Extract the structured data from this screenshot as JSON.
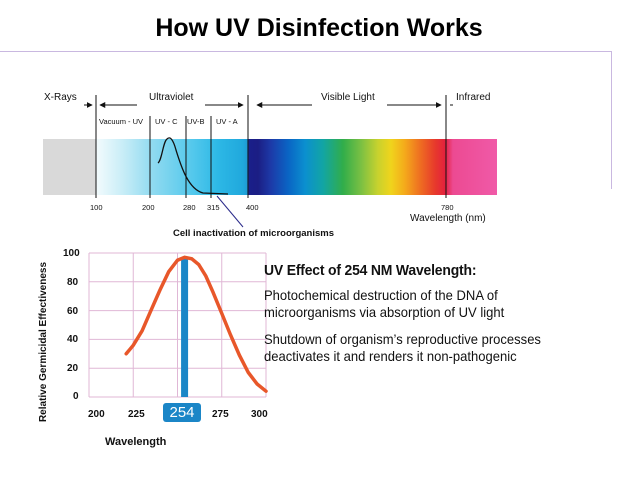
{
  "title": "How UV Disinfection Works",
  "spectrum": {
    "bands": [
      "X-Rays",
      "Ultraviolet",
      "Visible Light",
      "Infrared"
    ],
    "sub_bands": [
      "Vacuum - UV",
      "UV - C",
      "UV-B",
      "UV - A"
    ],
    "ticks": [
      "100",
      "200",
      "280",
      "315",
      "400",
      "780"
    ],
    "axis_label": "Wavelength (nm)",
    "callout": "Cell inactivation of microorganisms"
  },
  "chart_data": {
    "type": "line",
    "title": "",
    "xlabel": "Wavelength",
    "ylabel": "Relative Germicidal Effectiveness",
    "x_ticks": [
      "200",
      "225",
      "254",
      "275",
      "300"
    ],
    "y_ticks": [
      "100",
      "80",
      "60",
      "40",
      "20",
      "0"
    ],
    "xlim": [
      200,
      300
    ],
    "ylim": [
      0,
      100
    ],
    "grid": true,
    "highlight_x": 254,
    "series": [
      {
        "x": [
          221,
          225,
          230,
          235,
          240,
          245,
          250,
          254,
          258,
          262,
          266,
          270,
          275,
          280,
          285,
          290,
          295,
          300
        ],
        "values": [
          30,
          36,
          46,
          60,
          74,
          87,
          95,
          97,
          96,
          92,
          84,
          73,
          58,
          43,
          29,
          17,
          9,
          4
        ]
      }
    ],
    "colors": {
      "curve": "#e8572a",
      "grid": "#e0b7d6",
      "bar": "#1b86c7"
    }
  },
  "panel": {
    "heading": "UV Effect of 254 NM Wavelength:",
    "paragraphs": [
      "Photochemical destruction of the DNA of microorganisms via absorption of UV light",
      "Shutdown of organism’s reproductive processes deactivates it and renders it non-pathogenic"
    ]
  }
}
